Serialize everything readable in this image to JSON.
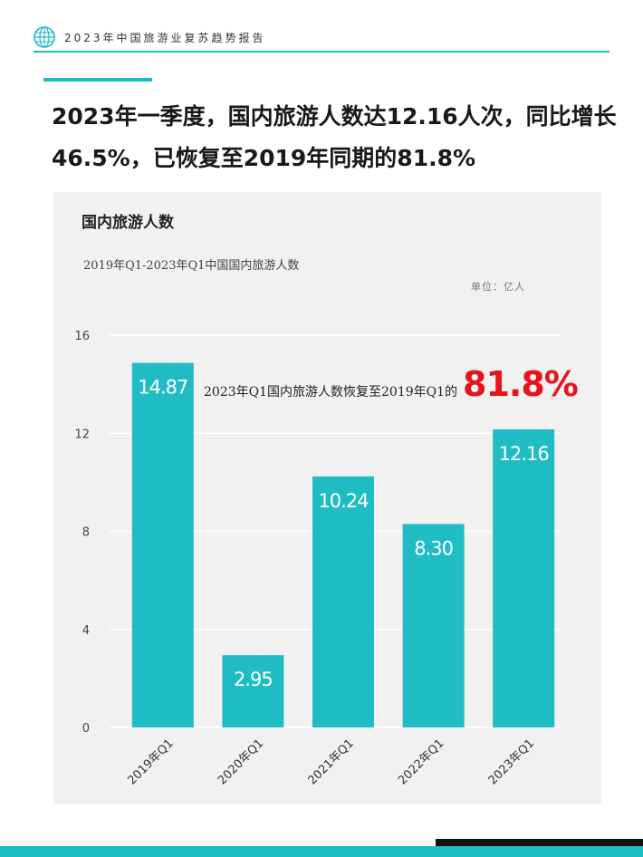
{
  "header": {
    "title": "2023年中国旅游业复苏趋势报告",
    "logo_icon": "globe-icon"
  },
  "headline": {
    "text": "2023年一季度，国内旅游人数达12.16人次，同比增长46.5%，已恢复至2019年同期的81.8%"
  },
  "panel": {
    "title": "国内旅游人数",
    "subtitle": "2019年Q1-2023年Q1中国国内旅游人数",
    "unit": "单位：亿人",
    "annotation_text": "2023年Q1国内旅游人数恢复至2019年Q1的",
    "annotation_value": "81.8%"
  },
  "colors": {
    "accent": "#1fbcc4",
    "highlight": "#e8141d",
    "panel_bg": "#f1f1f1"
  },
  "chart_data": {
    "type": "bar",
    "categories": [
      "2019年Q1",
      "2020年Q1",
      "2021年Q1",
      "2022年Q1",
      "2023年Q1"
    ],
    "values": [
      14.87,
      2.95,
      10.24,
      8.3,
      12.16
    ],
    "value_labels": [
      "14.87",
      "2.95",
      "10.24",
      "8.30",
      "12.16"
    ],
    "yticks": [
      "0",
      "4",
      "8",
      "12",
      "16"
    ],
    "ylim": [
      0,
      16
    ],
    "grid": true,
    "legend": "none",
    "bar_color": "#1fbcc4"
  }
}
